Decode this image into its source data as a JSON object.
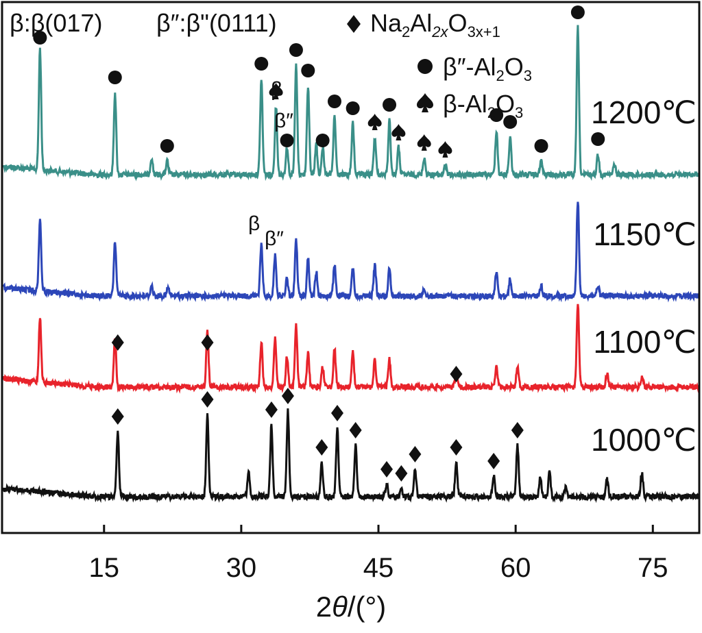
{
  "chart_data": {
    "type": "line",
    "xlabel_prefix": "2",
    "xlabel_italic": "θ",
    "xlabel_suffix": "/(°)",
    "xlim": [
      4,
      80
    ],
    "xticks": [
      15,
      30,
      45,
      60,
      75
    ],
    "legend": {
      "note_beta": "β:β(017)",
      "note_beta2": "β″:β\"(0111)",
      "items": [
        {
          "marker": "diamond",
          "label": "Na",
          "sub1": "2",
          "mid1": "Al",
          "sub2": "2x",
          "mid2": "O",
          "sub3": "3x+1"
        },
        {
          "marker": "circle",
          "label": "β″-Al",
          "sub1": "2",
          "mid1": "O",
          "sub2": "3"
        },
        {
          "marker": "spade",
          "label": "β-Al",
          "sub1": "2",
          "mid1": "O",
          "sub2": "3"
        }
      ]
    },
    "series": [
      {
        "name": "1200℃",
        "color": "#3a8f88",
        "baseline": 255,
        "peaks": [
          [
            8.0,
            178
          ],
          [
            16.2,
            120
          ],
          [
            20.2,
            25
          ],
          [
            21.9,
            20
          ],
          [
            32.2,
            140
          ],
          [
            33.8,
            100
          ],
          [
            35.0,
            40
          ],
          [
            36.0,
            160
          ],
          [
            37.3,
            130
          ],
          [
            38.2,
            45
          ],
          [
            38.9,
            40
          ],
          [
            40.2,
            85
          ],
          [
            42.2,
            75
          ],
          [
            44.6,
            55
          ],
          [
            46.2,
            80
          ],
          [
            47.2,
            40
          ],
          [
            50.0,
            25
          ],
          [
            52.3,
            15
          ],
          [
            57.9,
            65
          ],
          [
            59.4,
            55
          ],
          [
            62.8,
            20
          ],
          [
            66.8,
            215
          ],
          [
            69.0,
            30
          ],
          [
            70.8,
            15
          ]
        ]
      },
      {
        "name": "1150℃",
        "color": "#2c46b8",
        "baseline": 432,
        "peaks": [
          [
            8.0,
            105
          ],
          [
            16.2,
            80
          ],
          [
            20.2,
            15
          ],
          [
            22.0,
            12
          ],
          [
            32.2,
            75
          ],
          [
            33.7,
            60
          ],
          [
            35.0,
            25
          ],
          [
            36.0,
            82
          ],
          [
            37.3,
            55
          ],
          [
            38.2,
            35
          ],
          [
            40.2,
            45
          ],
          [
            42.2,
            40
          ],
          [
            44.6,
            45
          ],
          [
            46.2,
            40
          ],
          [
            50.0,
            12
          ],
          [
            57.9,
            35
          ],
          [
            59.4,
            25
          ],
          [
            62.8,
            15
          ],
          [
            66.8,
            140
          ],
          [
            69.0,
            15
          ]
        ]
      },
      {
        "name": "1100℃",
        "color": "#e8232b",
        "baseline": 565,
        "peaks": [
          [
            8.0,
            95
          ],
          [
            16.2,
            70
          ],
          [
            26.3,
            80
          ],
          [
            32.2,
            65
          ],
          [
            33.7,
            70
          ],
          [
            35.0,
            45
          ],
          [
            36.0,
            90
          ],
          [
            37.3,
            50
          ],
          [
            38.9,
            30
          ],
          [
            40.2,
            55
          ],
          [
            42.2,
            50
          ],
          [
            44.6,
            40
          ],
          [
            46.2,
            40
          ],
          [
            53.5,
            20
          ],
          [
            57.9,
            30
          ],
          [
            60.2,
            30
          ],
          [
            66.8,
            120
          ],
          [
            70.0,
            20
          ],
          [
            73.8,
            15
          ]
        ]
      },
      {
        "name": "1000℃",
        "color": "#111111",
        "baseline": 725,
        "peaks": [
          [
            16.5,
            95
          ],
          [
            26.3,
            120
          ],
          [
            30.8,
            35
          ],
          [
            33.3,
            105
          ],
          [
            35.1,
            125
          ],
          [
            38.8,
            50
          ],
          [
            40.5,
            100
          ],
          [
            42.5,
            75
          ],
          [
            45.9,
            18
          ],
          [
            47.5,
            12
          ],
          [
            49.0,
            40
          ],
          [
            53.5,
            50
          ],
          [
            57.6,
            30
          ],
          [
            60.2,
            75
          ],
          [
            62.7,
            30
          ],
          [
            63.7,
            35
          ],
          [
            65.5,
            15
          ],
          [
            70.0,
            25
          ],
          [
            73.8,
            35
          ]
        ]
      }
    ]
  }
}
